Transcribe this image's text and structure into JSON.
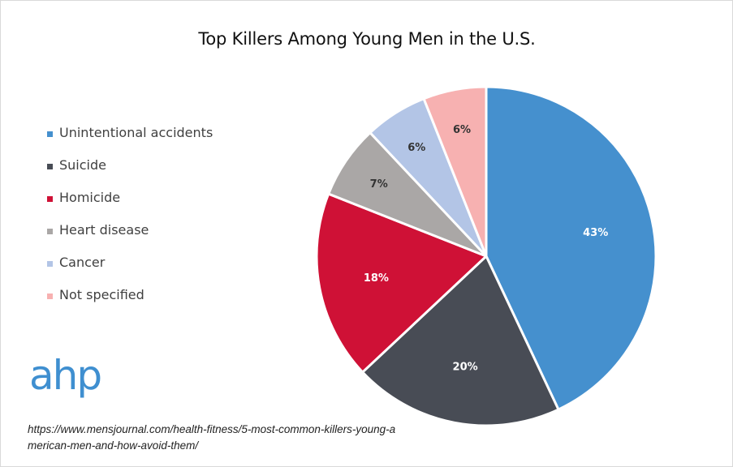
{
  "chart_data": {
    "type": "pie",
    "title": "Top Killers Among Young Men in the U.S.",
    "categories": [
      "Unintentional accidents",
      "Suicide",
      "Homicide",
      "Heart disease",
      "Cancer",
      "Not specified"
    ],
    "values": [
      43,
      20,
      18,
      7,
      6,
      6
    ],
    "data_labels": [
      "43%",
      "20%",
      "18%",
      "7%",
      "6%",
      "6%"
    ],
    "colors": [
      "#4590ce",
      "#484c55",
      "#cf1136",
      "#aaa7a6",
      "#b3c5e6",
      "#f7b1b1"
    ],
    "label_colors": [
      "#ffffff",
      "#ffffff",
      "#ffffff",
      "#333333",
      "#333333",
      "#333333"
    ],
    "legend_position": "left",
    "start_angle": "12 o'clock",
    "direction": "clockwise"
  },
  "logo": {
    "text": "ahp"
  },
  "source": {
    "text": "https://www.mensjournal.com/health-fitness/5-most-common-killers-young-american-men-and-how-avoid-them/"
  }
}
